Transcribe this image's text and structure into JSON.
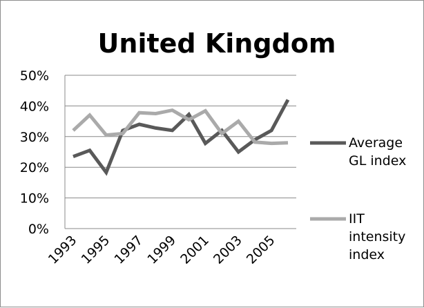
{
  "chart_data": {
    "type": "line",
    "title": "United Kingdom",
    "xlabel": "",
    "ylabel": "",
    "x": [
      1993,
      1994,
      1995,
      1996,
      1997,
      1998,
      1999,
      2000,
      2001,
      2002,
      2003,
      2004,
      2005,
      2006
    ],
    "x_tick_labels": [
      "1993",
      "1995",
      "1997",
      "1999",
      "2001",
      "2003",
      "2005"
    ],
    "y_tick_labels": [
      "0%",
      "10%",
      "20%",
      "30%",
      "40%",
      "50%"
    ],
    "ylim": [
      0,
      50
    ],
    "grid": "horizontal",
    "legend_position": "right",
    "series": [
      {
        "name_lines": [
          "Average",
          "GL index"
        ],
        "color": "#595959",
        "values": [
          23.5,
          25.5,
          18.3,
          32,
          34,
          32.8,
          32,
          37.2,
          27.8,
          32,
          25,
          29,
          32,
          42
        ]
      },
      {
        "name_lines": [
          "IIT",
          "intensity",
          "index"
        ],
        "color": "#aaaaaa",
        "values": [
          32,
          37,
          30.5,
          31,
          37.8,
          37.5,
          38.6,
          35.5,
          38.4,
          31,
          35,
          28.2,
          27.8,
          28
        ]
      }
    ]
  }
}
